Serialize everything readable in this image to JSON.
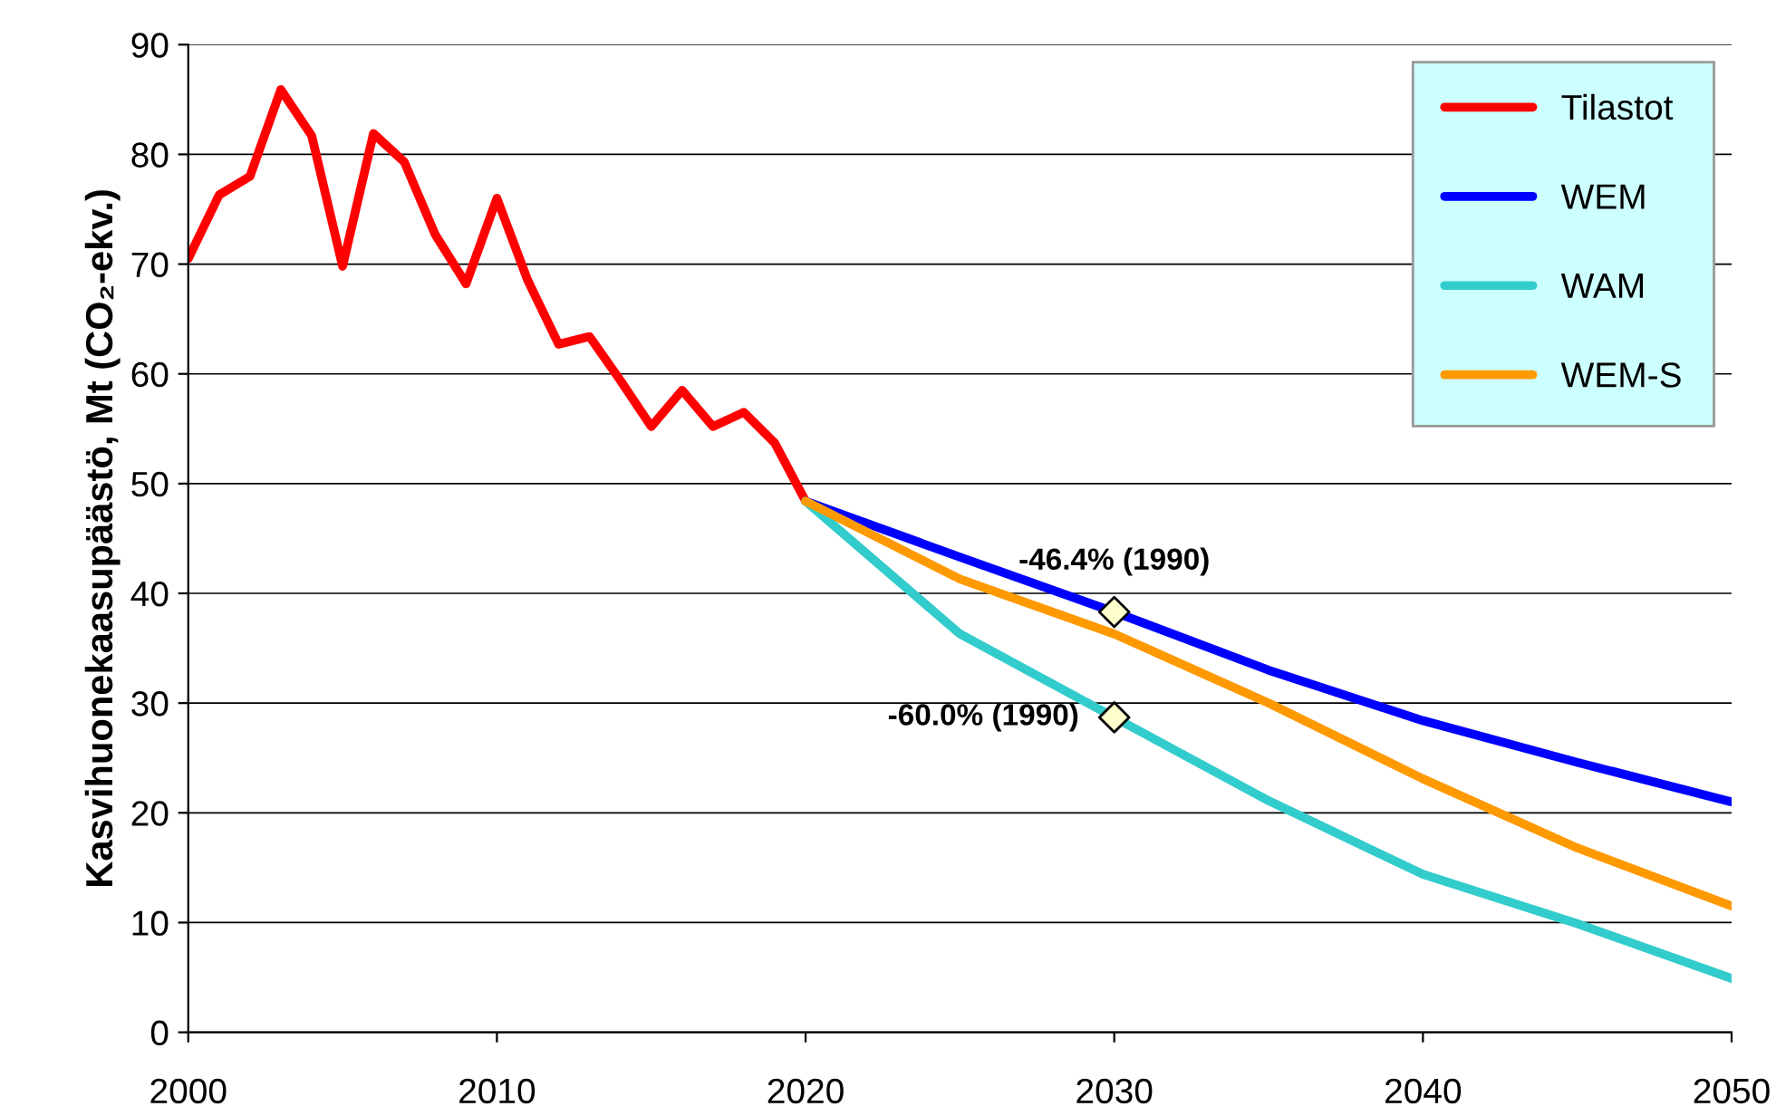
{
  "chart_data": {
    "type": "line",
    "ylabel": "Kasvihuonekaasupäästö, Mt (CO₂-ekv.)",
    "xlim": [
      2000,
      2050
    ],
    "xticks": [
      2000,
      2010,
      2020,
      2030,
      2040,
      2050
    ],
    "ylim": [
      0,
      90
    ],
    "yticks": [
      0,
      10,
      20,
      30,
      40,
      50,
      60,
      70,
      80,
      90
    ],
    "grid": "y",
    "legend": "top right",
    "line_style": "solid",
    "series": [
      {
        "name": "Tilastot",
        "color": "#ff0000",
        "x": [
          2000,
          2001,
          2002,
          2003,
          2004,
          2005,
          2006,
          2007,
          2008,
          2009,
          2010,
          2011,
          2012,
          2013,
          2014,
          2015,
          2016,
          2017,
          2018,
          2019,
          2020
        ],
        "values": [
          70.5,
          76.3,
          78,
          85.9,
          81.7,
          69.8,
          81.9,
          79.3,
          72.7,
          68.2,
          76,
          68.5,
          62.7,
          63.4,
          59.4,
          55.2,
          58.5,
          55.2,
          56.5,
          53.7,
          48.4
        ]
      },
      {
        "name": "WEM",
        "color": "#0000ff",
        "x": [
          2020,
          2025,
          2030,
          2035,
          2040,
          2045,
          2050
        ],
        "values": [
          48.4,
          43.3,
          38.3,
          33,
          28.4,
          24.6,
          21
        ]
      },
      {
        "name": "WAM",
        "color": "#33cccc",
        "x": [
          2020,
          2025,
          2030,
          2035,
          2040,
          2045,
          2050
        ],
        "values": [
          48.4,
          36.3,
          28.7,
          21.1,
          14.4,
          9.9,
          4.9
        ]
      },
      {
        "name": "WEM-S",
        "color": "#ff9900",
        "x": [
          2020,
          2025,
          2030,
          2035,
          2040,
          2045,
          2050
        ],
        "values": [
          48.4,
          41.3,
          36.3,
          30,
          23.1,
          16.8,
          11.5
        ]
      },
      {
        "type": "scatter",
        "marker": "diamond",
        "color": "#ffffcc",
        "x": [
          2030,
          2030
        ],
        "values": [
          38.3,
          28.7
        ]
      }
    ],
    "annotations": [
      {
        "text": "-46.4% (1990)",
        "x": 2030,
        "y": 38.3
      },
      {
        "text": "-60.0% (1990)",
        "x": 2030,
        "y": 28.7
      }
    ]
  }
}
